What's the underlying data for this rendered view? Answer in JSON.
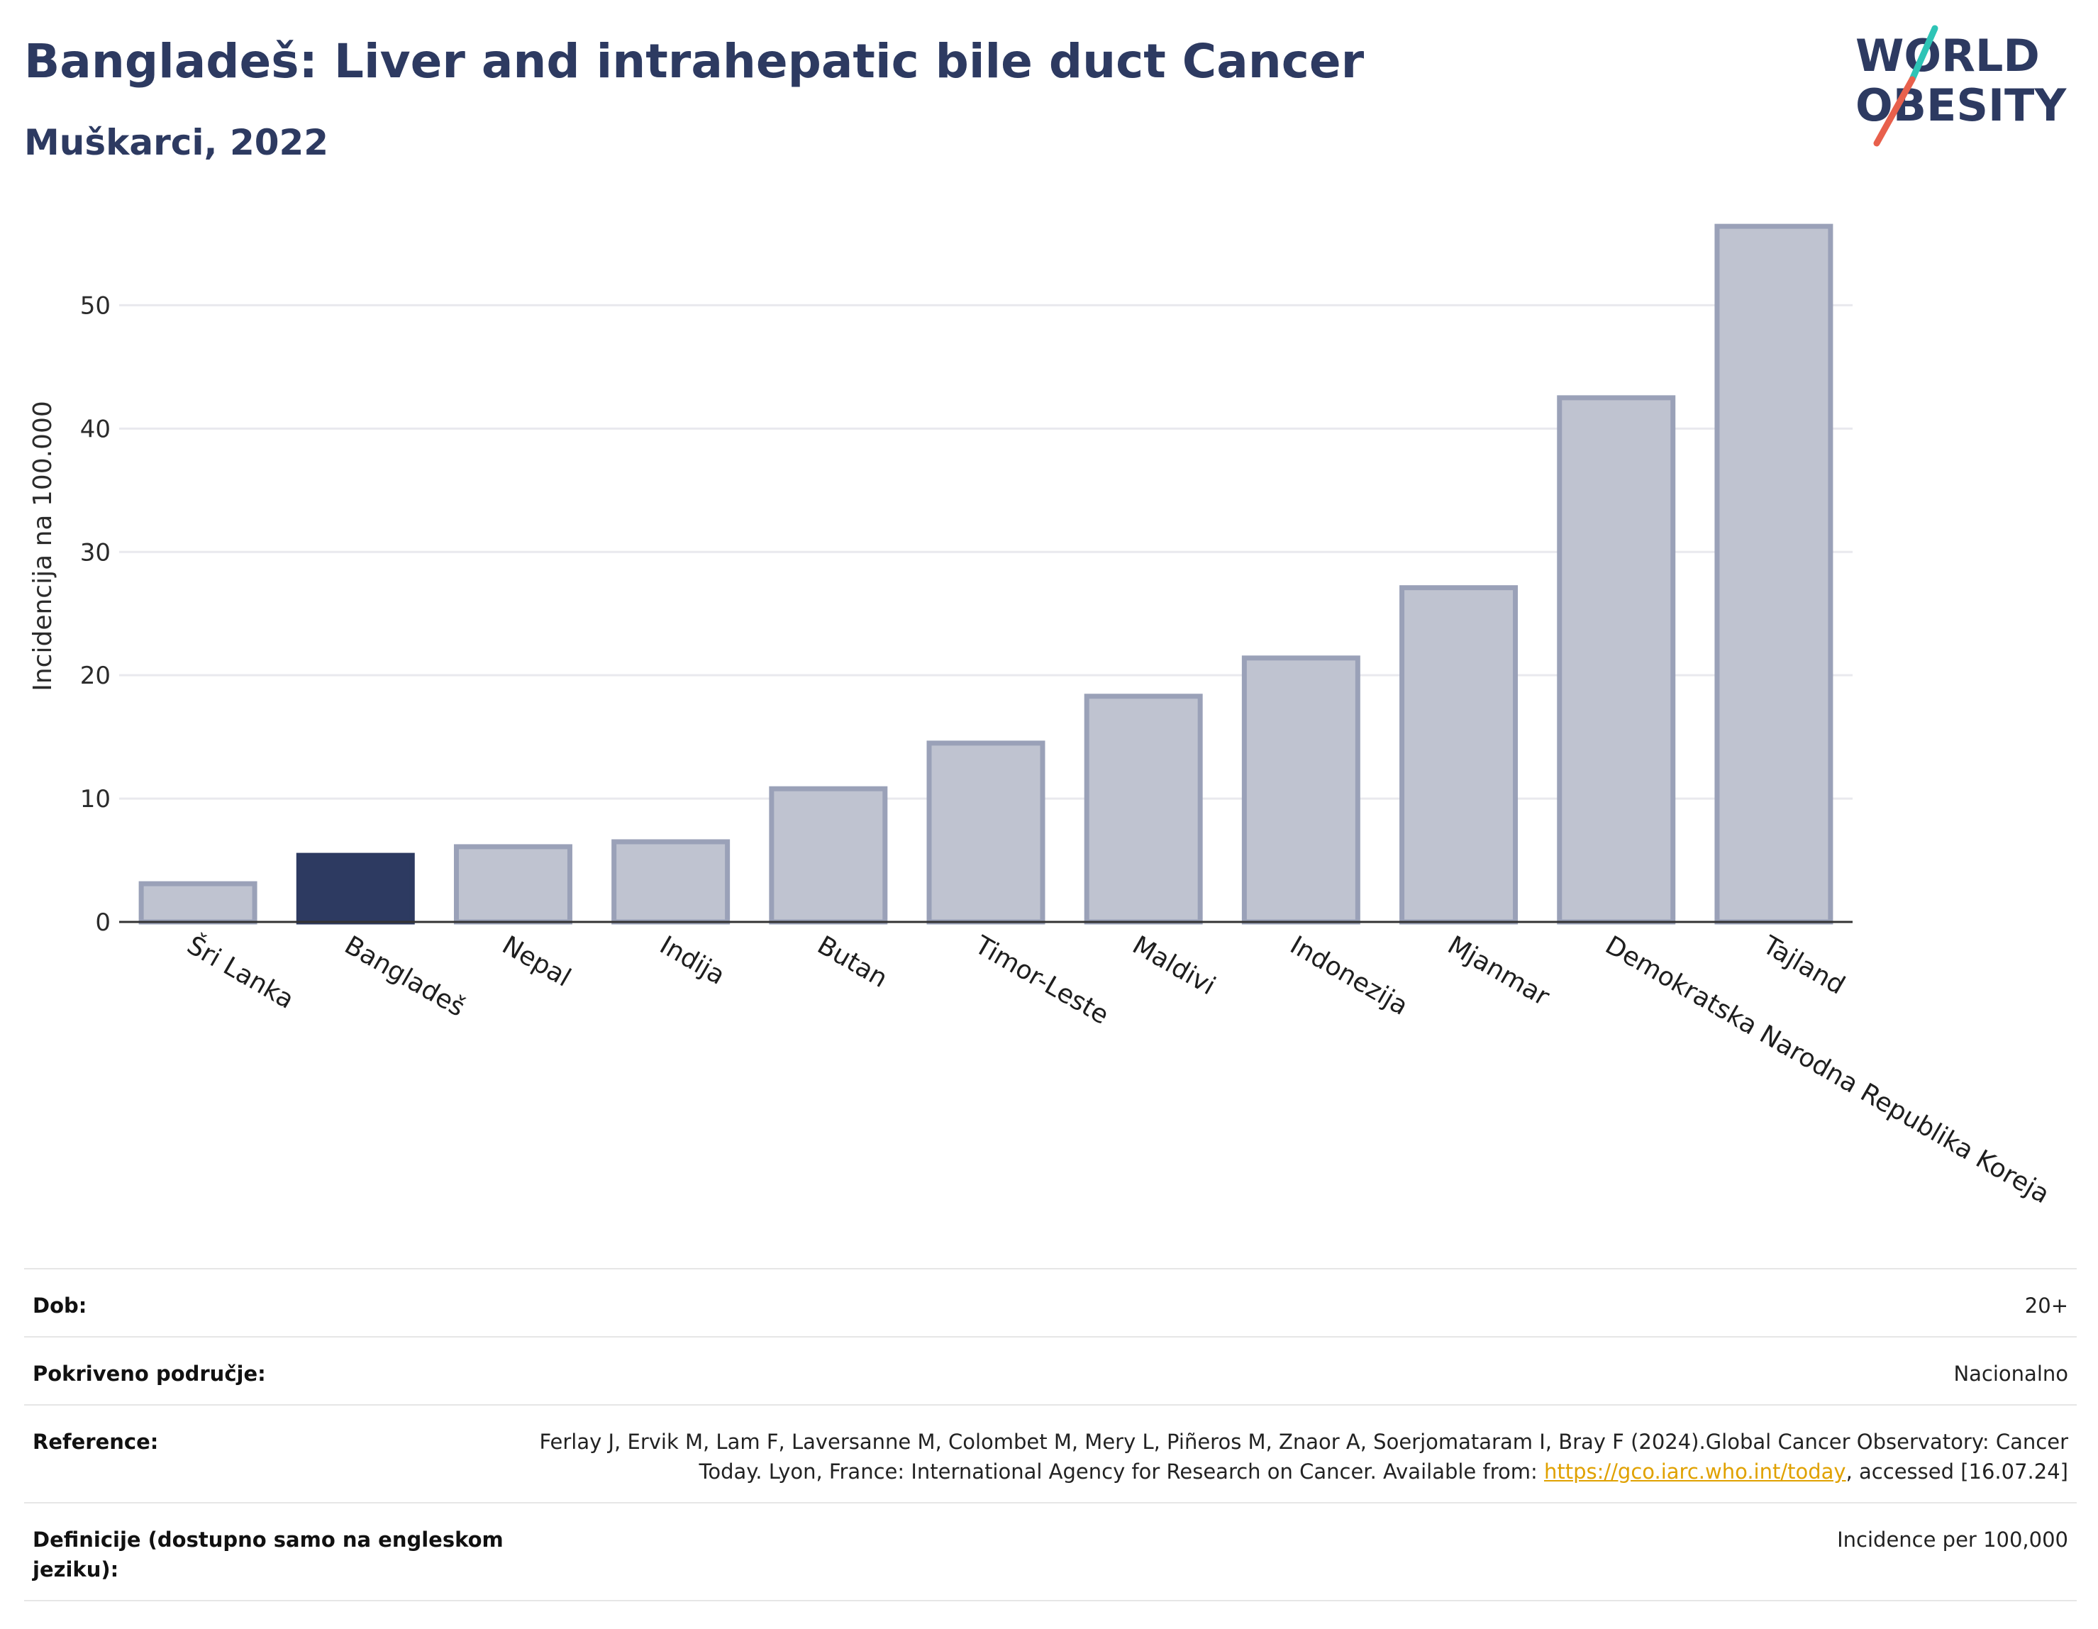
{
  "header": {
    "title": "Bangladeš: Liver and intrahepatic bile duct Cancer",
    "subtitle": "Muškarci, 2022"
  },
  "logo": {
    "line1": "WORLD",
    "line2": "OBESITY",
    "slash_colors": [
      "#2ec4b6",
      "#e8604c"
    ]
  },
  "colors": {
    "highlight": "#2d3a61",
    "bar_fill": "#bfc3d0",
    "bar_stroke": "#9aa1b8",
    "grid": "#e9e9ee",
    "axis": "#333333"
  },
  "chart_data": {
    "type": "bar",
    "title": "Bangladeš: Liver and intrahepatic bile duct Cancer",
    "subtitle": "Muškarci, 2022",
    "xlabel": "",
    "ylabel": "Incidencija na 100.000",
    "ylim": [
      0,
      57.5
    ],
    "yticks": [
      0,
      10,
      20,
      30,
      40,
      50
    ],
    "grid": true,
    "highlight_category": "Bangladeš",
    "categories": [
      "Šri Lanka",
      "Bangladeš",
      "Nepal",
      "Indija",
      "Butan",
      "Timor-Leste",
      "Maldivi",
      "Indonezija",
      "Mjanmar",
      "Demokratska Narodna Republika Koreja",
      "Tajland"
    ],
    "values": [
      3.1,
      5.4,
      6.1,
      6.5,
      10.8,
      14.5,
      18.3,
      21.4,
      27.1,
      42.5,
      56.4
    ]
  },
  "info": {
    "rows": [
      {
        "label": "Dob:",
        "value": "20+"
      },
      {
        "label": "Pokriveno područje:",
        "value": "Nacionalno"
      },
      {
        "label": "Reference:",
        "value_pre": "Ferlay J, Ervik M, Lam F, Laversanne M, Colombet M, Mery L, Piñeros M, Znaor A, Soerjomataram I, Bray F (2024).Global Cancer Observatory: Cancer Today. Lyon, France: International Agency for Research on Cancer. Available from: ",
        "link": "https://gco.iarc.who.int/today",
        "value_post": ", accessed [16.07.24]"
      },
      {
        "label": "Definicije (dostupno samo na engleskom jeziku):",
        "value": "Incidence per 100,000"
      }
    ]
  }
}
